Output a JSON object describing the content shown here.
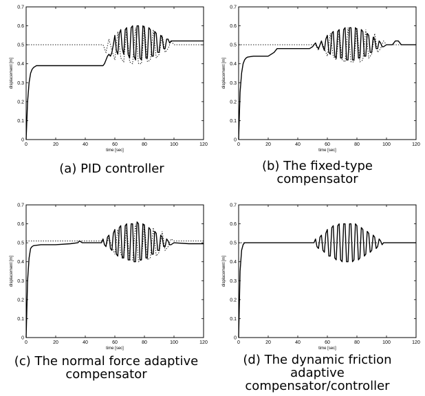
{
  "chart_data": [
    {
      "type": "line",
      "panel_id": "a",
      "caption": "(a) PID controller",
      "xlabel": "time [sec]",
      "ylabel": "displacement [m]",
      "xlim": [
        0,
        120
      ],
      "ylim": [
        0,
        0.7
      ],
      "xticks": [
        0,
        20,
        40,
        60,
        80,
        100,
        120
      ],
      "yticks": [
        0,
        0.1,
        0.2,
        0.3,
        0.4,
        0.5,
        0.6,
        0.7
      ],
      "series": [
        {
          "style": "solid",
          "x": [
            0,
            1,
            2,
            3,
            4,
            5,
            6,
            7,
            10,
            20,
            30,
            40,
            50,
            52,
            53,
            54,
            55,
            56,
            57,
            58,
            59,
            60,
            61,
            62,
            63,
            64,
            65,
            66,
            67,
            68,
            69,
            70,
            71,
            72,
            73,
            74,
            75,
            76,
            77,
            78,
            79,
            80,
            81,
            82,
            83,
            84,
            85,
            86,
            87,
            88,
            89,
            90,
            91,
            92,
            93,
            94,
            95,
            96,
            97,
            98,
            99,
            100,
            110,
            120
          ],
          "y": [
            0,
            0.2,
            0.3,
            0.35,
            0.37,
            0.38,
            0.385,
            0.39,
            0.39,
            0.39,
            0.39,
            0.39,
            0.39,
            0.39,
            0.4,
            0.42,
            0.44,
            0.45,
            0.44,
            0.46,
            0.5,
            0.55,
            0.47,
            0.45,
            0.56,
            0.58,
            0.48,
            0.45,
            0.58,
            0.59,
            0.45,
            0.43,
            0.59,
            0.6,
            0.44,
            0.42,
            0.6,
            0.6,
            0.43,
            0.42,
            0.6,
            0.59,
            0.43,
            0.43,
            0.59,
            0.58,
            0.44,
            0.44,
            0.57,
            0.56,
            0.46,
            0.46,
            0.55,
            0.54,
            0.48,
            0.48,
            0.53,
            0.53,
            0.51,
            0.52,
            0.52,
            0.52,
            0.52,
            0.52
          ]
        },
        {
          "style": "dotted",
          "x": [
            0,
            50,
            52,
            54,
            56,
            58,
            60,
            62,
            64,
            66,
            68,
            70,
            72,
            74,
            76,
            78,
            80,
            82,
            84,
            86,
            88,
            90,
            92,
            94,
            96,
            98,
            100,
            120
          ],
          "y": [
            0.5,
            0.5,
            0.5,
            0.46,
            0.53,
            0.47,
            0.42,
            0.57,
            0.43,
            0.41,
            0.58,
            0.41,
            0.4,
            0.59,
            0.4,
            0.4,
            0.6,
            0.41,
            0.42,
            0.58,
            0.43,
            0.45,
            0.55,
            0.46,
            0.48,
            0.52,
            0.5,
            0.5
          ]
        }
      ]
    },
    {
      "type": "line",
      "panel_id": "b",
      "caption": "(b) The fixed-type\ncompensator",
      "xlabel": "time [sec]",
      "ylabel": "displacement [m]",
      "xlim": [
        0,
        120
      ],
      "ylim": [
        0,
        0.7
      ],
      "xticks": [
        0,
        20,
        40,
        60,
        80,
        100,
        120
      ],
      "yticks": [
        0,
        0.1,
        0.2,
        0.3,
        0.4,
        0.5,
        0.6,
        0.7
      ],
      "series": [
        {
          "style": "solid",
          "x": [
            0,
            1,
            2,
            3,
            4,
            5,
            6,
            10,
            20,
            22,
            24,
            26,
            30,
            40,
            48,
            50,
            51,
            52,
            53,
            54,
            55,
            56,
            57,
            58,
            59,
            60,
            61,
            62,
            63,
            64,
            65,
            66,
            67,
            68,
            69,
            70,
            71,
            72,
            73,
            74,
            75,
            76,
            77,
            78,
            79,
            80,
            81,
            82,
            83,
            84,
            85,
            86,
            87,
            88,
            89,
            90,
            91,
            92,
            93,
            94,
            95,
            96,
            97,
            98,
            100,
            104,
            106,
            108,
            110,
            120
          ],
          "y": [
            0,
            0.25,
            0.35,
            0.4,
            0.42,
            0.43,
            0.435,
            0.44,
            0.44,
            0.45,
            0.46,
            0.48,
            0.48,
            0.48,
            0.48,
            0.49,
            0.5,
            0.51,
            0.49,
            0.48,
            0.5,
            0.52,
            0.49,
            0.47,
            0.53,
            0.55,
            0.46,
            0.45,
            0.56,
            0.57,
            0.44,
            0.43,
            0.57,
            0.58,
            0.43,
            0.43,
            0.58,
            0.59,
            0.42,
            0.42,
            0.59,
            0.59,
            0.42,
            0.42,
            0.59,
            0.58,
            0.43,
            0.43,
            0.58,
            0.57,
            0.44,
            0.44,
            0.56,
            0.55,
            0.46,
            0.46,
            0.54,
            0.53,
            0.48,
            0.48,
            0.52,
            0.51,
            0.49,
            0.49,
            0.5,
            0.5,
            0.52,
            0.52,
            0.5,
            0.5
          ]
        },
        {
          "style": "dotted",
          "x": [
            0,
            50,
            52,
            54,
            56,
            58,
            60,
            62,
            64,
            66,
            68,
            70,
            72,
            74,
            76,
            78,
            80,
            82,
            84,
            86,
            88,
            90,
            92,
            94,
            96,
            98,
            100,
            120
          ],
          "y": [
            0.5,
            0.5,
            0.5,
            0.47,
            0.52,
            0.48,
            0.44,
            0.56,
            0.44,
            0.42,
            0.57,
            0.42,
            0.41,
            0.59,
            0.41,
            0.41,
            0.59,
            0.41,
            0.42,
            0.58,
            0.43,
            0.45,
            0.56,
            0.46,
            0.48,
            0.52,
            0.5,
            0.5
          ]
        }
      ]
    },
    {
      "type": "line",
      "panel_id": "c",
      "caption": "(c) The normal force adaptive\ncompensator",
      "xlabel": "time [sec]",
      "ylabel": "displacement [m]",
      "xlim": [
        0,
        120
      ],
      "ylim": [
        0,
        0.7
      ],
      "xticks": [
        0,
        20,
        40,
        60,
        80,
        100,
        120
      ],
      "yticks": [
        0,
        0.1,
        0.2,
        0.3,
        0.4,
        0.5,
        0.6,
        0.7
      ],
      "series": [
        {
          "style": "solid",
          "x": [
            0,
            1,
            2,
            3,
            4,
            5,
            10,
            20,
            30,
            35,
            36,
            38,
            40,
            45,
            50,
            51,
            52,
            53,
            54,
            55,
            56,
            57,
            58,
            59,
            60,
            61,
            62,
            63,
            64,
            65,
            66,
            67,
            68,
            69,
            70,
            71,
            72,
            73,
            74,
            75,
            76,
            77,
            78,
            79,
            80,
            81,
            82,
            83,
            84,
            85,
            86,
            87,
            88,
            89,
            90,
            91,
            92,
            93,
            94,
            95,
            96,
            97,
            98,
            100,
            110,
            120
          ],
          "y": [
            0,
            0.3,
            0.42,
            0.47,
            0.48,
            0.485,
            0.49,
            0.49,
            0.495,
            0.5,
            0.51,
            0.5,
            0.5,
            0.5,
            0.5,
            0.5,
            0.52,
            0.49,
            0.48,
            0.53,
            0.54,
            0.47,
            0.46,
            0.55,
            0.57,
            0.44,
            0.43,
            0.58,
            0.59,
            0.42,
            0.42,
            0.59,
            0.6,
            0.41,
            0.41,
            0.6,
            0.6,
            0.4,
            0.4,
            0.61,
            0.6,
            0.41,
            0.41,
            0.6,
            0.59,
            0.42,
            0.42,
            0.58,
            0.57,
            0.44,
            0.44,
            0.56,
            0.55,
            0.46,
            0.46,
            0.54,
            0.53,
            0.48,
            0.48,
            0.52,
            0.51,
            0.49,
            0.49,
            0.5,
            0.495,
            0.495
          ]
        },
        {
          "style": "dotted",
          "x": [
            0,
            50,
            52,
            54,
            56,
            58,
            60,
            62,
            64,
            66,
            68,
            70,
            72,
            74,
            76,
            78,
            80,
            82,
            84,
            86,
            88,
            90,
            92,
            94,
            96,
            98,
            100,
            120
          ],
          "y": [
            0.51,
            0.51,
            0.51,
            0.48,
            0.53,
            0.48,
            0.44,
            0.57,
            0.44,
            0.42,
            0.58,
            0.41,
            0.41,
            0.6,
            0.4,
            0.41,
            0.6,
            0.41,
            0.42,
            0.58,
            0.43,
            0.45,
            0.56,
            0.46,
            0.48,
            0.52,
            0.51,
            0.51
          ]
        }
      ]
    },
    {
      "type": "line",
      "panel_id": "d",
      "caption": "(d) The dynamic friction\nadaptive\ncompensator/controller",
      "xlabel": "time [sec]",
      "ylabel": "displacement [m]",
      "xlim": [
        0,
        120
      ],
      "ylim": [
        0,
        0.7
      ],
      "xticks": [
        0,
        20,
        40,
        60,
        80,
        100,
        120
      ],
      "yticks": [
        0,
        0.1,
        0.2,
        0.3,
        0.4,
        0.5,
        0.6,
        0.7
      ],
      "series": [
        {
          "style": "solid",
          "x": [
            0,
            1,
            2,
            3,
            4,
            5,
            10,
            20,
            30,
            40,
            50,
            51,
            52,
            53,
            54,
            55,
            56,
            57,
            58,
            59,
            60,
            61,
            62,
            63,
            64,
            65,
            66,
            67,
            68,
            69,
            70,
            71,
            72,
            73,
            74,
            75,
            76,
            77,
            78,
            79,
            80,
            81,
            82,
            83,
            84,
            85,
            86,
            87,
            88,
            89,
            90,
            91,
            92,
            93,
            94,
            95,
            96,
            97,
            98,
            100,
            110,
            120
          ],
          "y": [
            0,
            0.35,
            0.46,
            0.49,
            0.5,
            0.5,
            0.5,
            0.5,
            0.5,
            0.5,
            0.5,
            0.5,
            0.52,
            0.48,
            0.47,
            0.53,
            0.54,
            0.46,
            0.45,
            0.55,
            0.57,
            0.43,
            0.43,
            0.58,
            0.59,
            0.42,
            0.41,
            0.59,
            0.6,
            0.41,
            0.4,
            0.6,
            0.6,
            0.4,
            0.4,
            0.6,
            0.6,
            0.4,
            0.41,
            0.6,
            0.59,
            0.41,
            0.42,
            0.58,
            0.57,
            0.43,
            0.44,
            0.56,
            0.55,
            0.45,
            0.46,
            0.54,
            0.53,
            0.47,
            0.48,
            0.52,
            0.51,
            0.49,
            0.5,
            0.5,
            0.5,
            0.5
          ]
        },
        {
          "style": "dotted",
          "x": [
            0,
            120
          ],
          "y": [
            0.5,
            0.5
          ]
        }
      ]
    }
  ]
}
